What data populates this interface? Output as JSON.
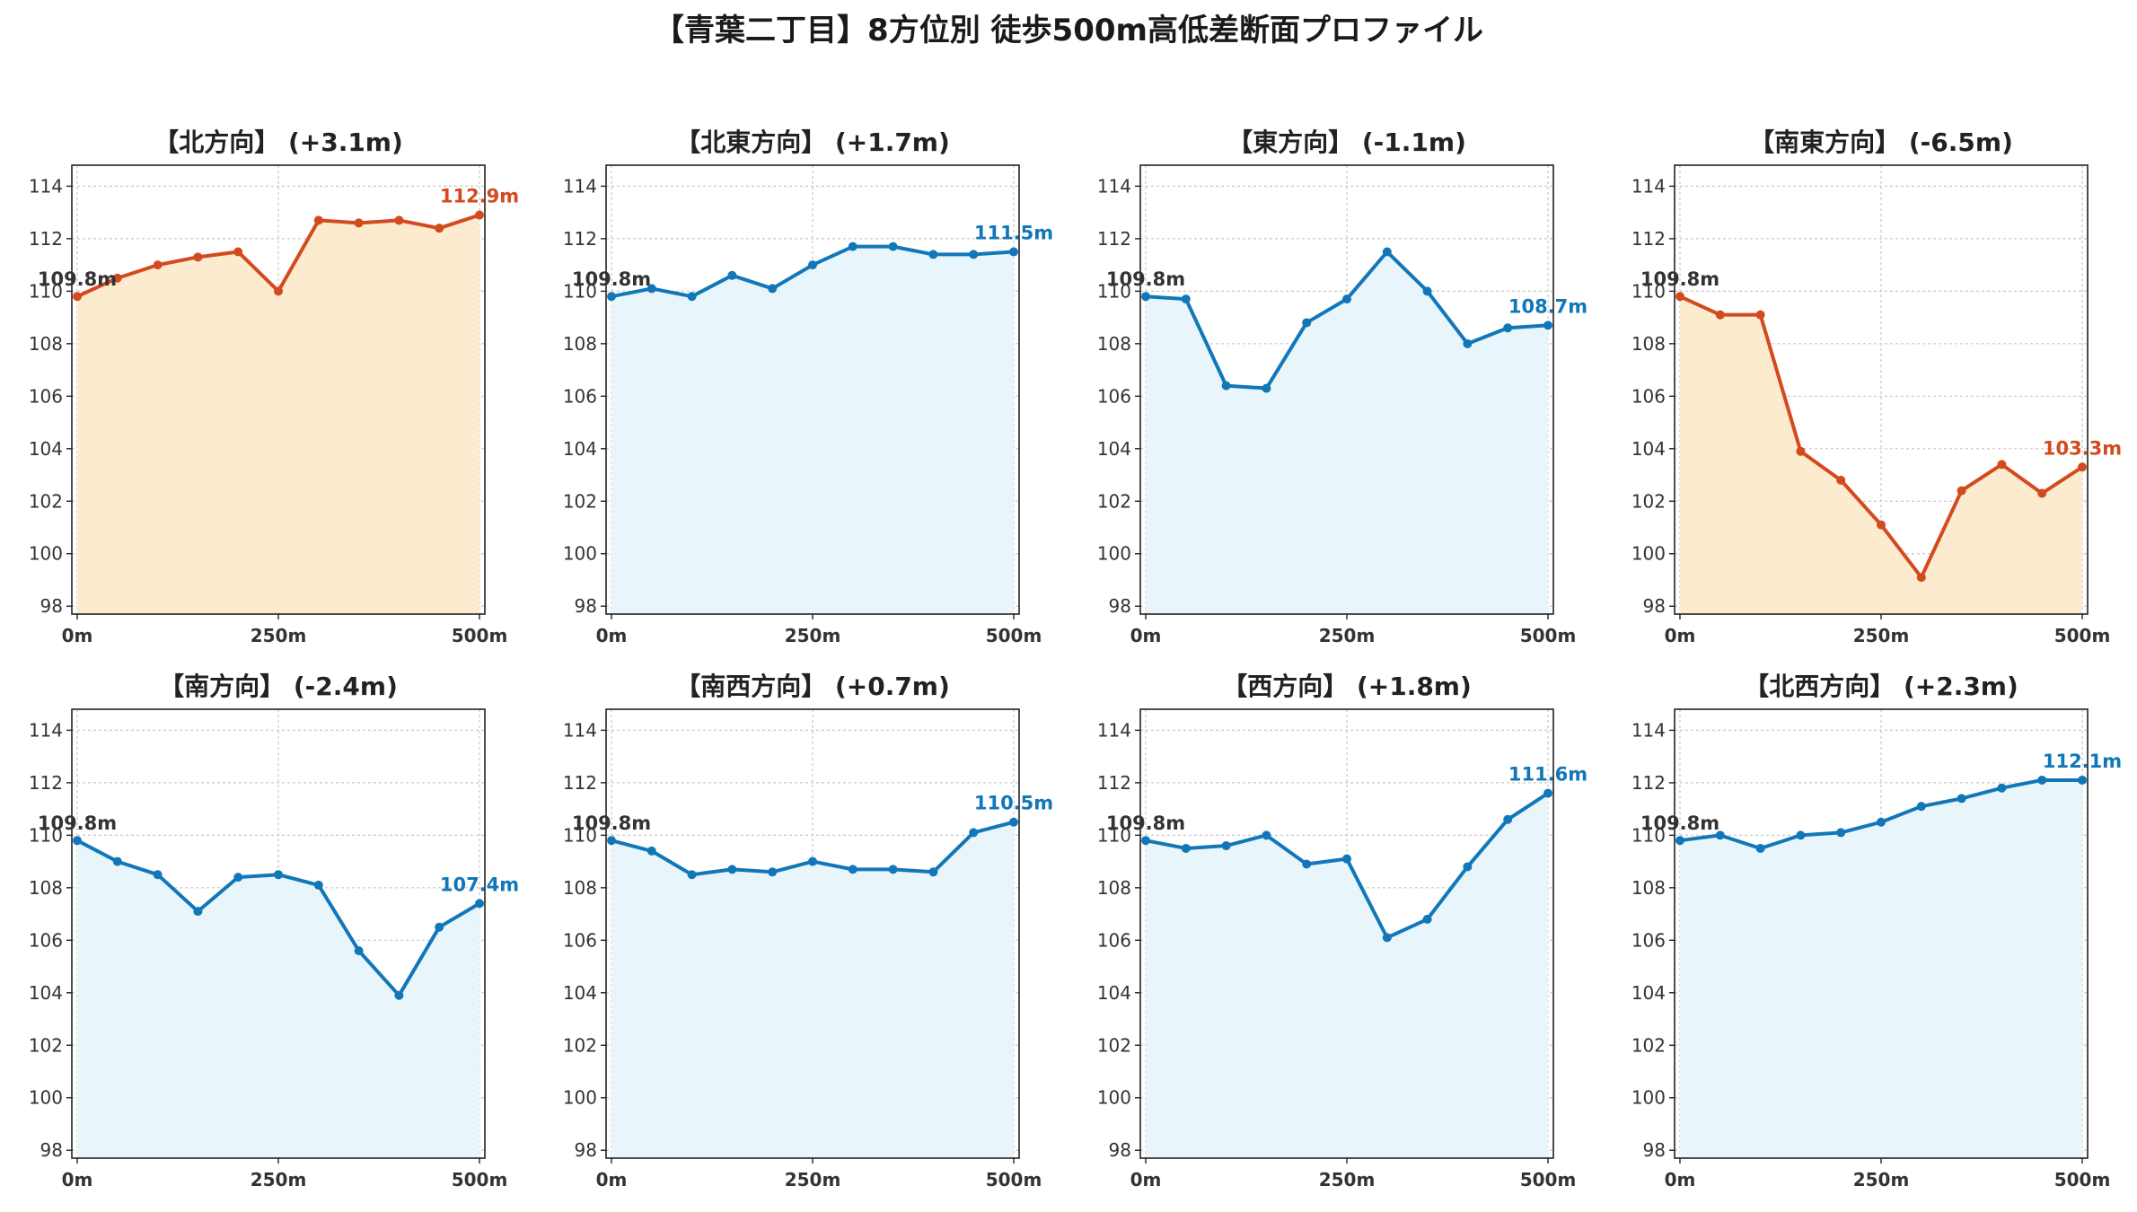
{
  "title": "【青葉二丁目】8方位別 徒歩500m高低差断面プロファイル",
  "colors": {
    "up_line": "#d24a1e",
    "up_fill": "#fdebd0",
    "down_line": "#1277b8",
    "down_fill": "#e8f6fc",
    "start_label": "#333333",
    "grid": "#c8c8c8",
    "axis": "#222222"
  },
  "chart_data": [
    {
      "type": "area",
      "title": "【北方向】 (+3.1m)",
      "trend": "up",
      "x": [
        0,
        50,
        100,
        150,
        200,
        250,
        300,
        350,
        400,
        450,
        500
      ],
      "values": [
        109.8,
        110.5,
        111.0,
        111.3,
        111.5,
        110.0,
        112.7,
        112.6,
        112.7,
        112.4,
        112.9
      ],
      "start_label": "109.8m",
      "end_label": "112.9m",
      "xticks": [
        "0m",
        "250m",
        "500m"
      ],
      "yticks": [
        "98",
        "100",
        "102",
        "104",
        "106",
        "108",
        "110",
        "112",
        "114"
      ],
      "ylim": [
        97.7,
        114.8
      ],
      "xlim": [
        0,
        500
      ],
      "grid": true
    },
    {
      "type": "area",
      "title": "【北東方向】 (+1.7m)",
      "trend": "down",
      "x": [
        0,
        50,
        100,
        150,
        200,
        250,
        300,
        350,
        400,
        450,
        500
      ],
      "values": [
        109.8,
        110.1,
        109.8,
        110.6,
        110.1,
        111.0,
        111.7,
        111.7,
        111.4,
        111.4,
        111.5
      ],
      "start_label": "109.8m",
      "end_label": "111.5m",
      "xticks": [
        "0m",
        "250m",
        "500m"
      ],
      "yticks": [
        "98",
        "100",
        "102",
        "104",
        "106",
        "108",
        "110",
        "112",
        "114"
      ],
      "ylim": [
        97.7,
        114.8
      ],
      "xlim": [
        0,
        500
      ],
      "grid": true
    },
    {
      "type": "area",
      "title": "【東方向】 (-1.1m)",
      "trend": "down",
      "x": [
        0,
        50,
        100,
        150,
        200,
        250,
        300,
        350,
        400,
        450,
        500
      ],
      "values": [
        109.8,
        109.7,
        106.4,
        106.3,
        108.8,
        109.7,
        111.5,
        110.0,
        108.0,
        108.6,
        108.7
      ],
      "start_label": "109.8m",
      "end_label": "108.7m",
      "xticks": [
        "0m",
        "250m",
        "500m"
      ],
      "yticks": [
        "98",
        "100",
        "102",
        "104",
        "106",
        "108",
        "110",
        "112",
        "114"
      ],
      "ylim": [
        97.7,
        114.8
      ],
      "xlim": [
        0,
        500
      ],
      "grid": true
    },
    {
      "type": "area",
      "title": "【南東方向】 (-6.5m)",
      "trend": "up",
      "x": [
        0,
        50,
        100,
        150,
        200,
        250,
        300,
        350,
        400,
        450,
        500
      ],
      "values": [
        109.8,
        109.1,
        109.1,
        103.9,
        102.8,
        101.1,
        99.1,
        102.4,
        103.4,
        102.3,
        103.3
      ],
      "start_label": "109.8m",
      "end_label": "103.3m",
      "xticks": [
        "0m",
        "250m",
        "500m"
      ],
      "yticks": [
        "98",
        "100",
        "102",
        "104",
        "106",
        "108",
        "110",
        "112",
        "114"
      ],
      "ylim": [
        97.7,
        114.8
      ],
      "xlim": [
        0,
        500
      ],
      "grid": true
    },
    {
      "type": "area",
      "title": "【南方向】 (-2.4m)",
      "trend": "down",
      "x": [
        0,
        50,
        100,
        150,
        200,
        250,
        300,
        350,
        400,
        450,
        500
      ],
      "values": [
        109.8,
        109.0,
        108.5,
        107.1,
        108.4,
        108.5,
        108.1,
        105.6,
        103.9,
        106.5,
        107.4
      ],
      "start_label": "109.8m",
      "end_label": "107.4m",
      "xticks": [
        "0m",
        "250m",
        "500m"
      ],
      "yticks": [
        "98",
        "100",
        "102",
        "104",
        "106",
        "108",
        "110",
        "112",
        "114"
      ],
      "ylim": [
        97.7,
        114.8
      ],
      "xlim": [
        0,
        500
      ],
      "grid": true
    },
    {
      "type": "area",
      "title": "【南西方向】 (+0.7m)",
      "trend": "down",
      "x": [
        0,
        50,
        100,
        150,
        200,
        250,
        300,
        350,
        400,
        450,
        500
      ],
      "values": [
        109.8,
        109.4,
        108.5,
        108.7,
        108.6,
        109.0,
        108.7,
        108.7,
        108.6,
        110.1,
        110.5
      ],
      "start_label": "109.8m",
      "end_label": "110.5m",
      "xticks": [
        "0m",
        "250m",
        "500m"
      ],
      "yticks": [
        "98",
        "100",
        "102",
        "104",
        "106",
        "108",
        "110",
        "112",
        "114"
      ],
      "ylim": [
        97.7,
        114.8
      ],
      "xlim": [
        0,
        500
      ],
      "grid": true
    },
    {
      "type": "area",
      "title": "【西方向】 (+1.8m)",
      "trend": "down",
      "x": [
        0,
        50,
        100,
        150,
        200,
        250,
        300,
        350,
        400,
        450,
        500
      ],
      "values": [
        109.8,
        109.5,
        109.6,
        110.0,
        108.9,
        109.1,
        106.1,
        106.8,
        108.8,
        110.6,
        111.6
      ],
      "start_label": "109.8m",
      "end_label": "111.6m",
      "xticks": [
        "0m",
        "250m",
        "500m"
      ],
      "yticks": [
        "98",
        "100",
        "102",
        "104",
        "106",
        "108",
        "110",
        "112",
        "114"
      ],
      "ylim": [
        97.7,
        114.8
      ],
      "xlim": [
        0,
        500
      ],
      "grid": true
    },
    {
      "type": "area",
      "title": "【北西方向】 (+2.3m)",
      "trend": "down",
      "x": [
        0,
        50,
        100,
        150,
        200,
        250,
        300,
        350,
        400,
        450,
        500
      ],
      "values": [
        109.8,
        110.0,
        109.5,
        110.0,
        110.1,
        110.5,
        111.1,
        111.4,
        111.8,
        112.1,
        112.1
      ],
      "start_label": "109.8m",
      "end_label": "112.1m",
      "xticks": [
        "0m",
        "250m",
        "500m"
      ],
      "yticks": [
        "98",
        "100",
        "102",
        "104",
        "106",
        "108",
        "110",
        "112",
        "114"
      ],
      "ylim": [
        97.7,
        114.8
      ],
      "xlim": [
        0,
        500
      ],
      "grid": true
    }
  ]
}
